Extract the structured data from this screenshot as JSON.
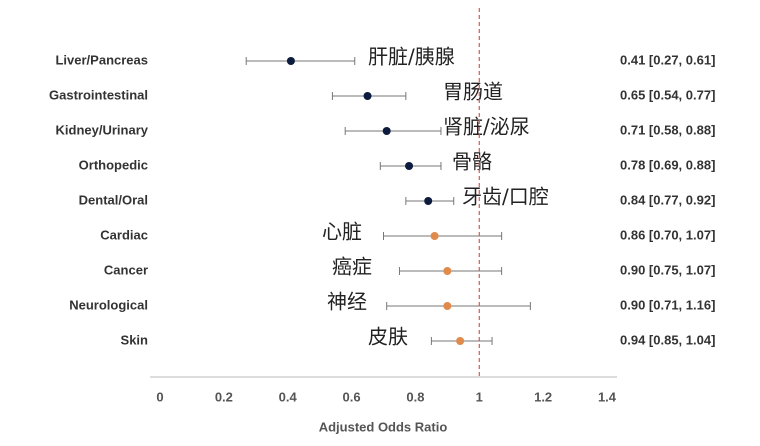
{
  "chart_data": {
    "type": "forest",
    "x_label": "Adjusted Odds Ratio",
    "categories": [
      "Liver/Pancreas",
      "Gastrointestinal",
      "Kidney/Urinary",
      "Orthopedic",
      "Dental/Oral",
      "Cardiac",
      "Cancer",
      "Neurological",
      "Skin"
    ],
    "annotations": [
      "肝脏/胰腺",
      "胃肠道",
      "肾脏/泌尿",
      "骨骼",
      "牙齿/口腔",
      "心脏",
      "癌症",
      "神经",
      "皮肤"
    ],
    "values": [
      0.41,
      0.65,
      0.71,
      0.78,
      0.84,
      0.86,
      0.9,
      0.9,
      0.94
    ],
    "lower": [
      0.27,
      0.54,
      0.58,
      0.69,
      0.77,
      0.7,
      0.75,
      0.71,
      0.85
    ],
    "upper": [
      0.61,
      0.77,
      0.88,
      0.88,
      0.92,
      1.07,
      1.07,
      1.16,
      1.04
    ],
    "value_labels": [
      "0.41 [0.27, 0.61]",
      "0.65 [0.54, 0.77]",
      "0.71 [0.58, 0.88]",
      "0.78 [0.69, 0.88]",
      "0.84 [0.77, 0.92]",
      "0.86 [0.70, 1.07]",
      "0.90 [0.75, 1.07]",
      "0.90 [0.71, 1.16]",
      "0.94 [0.85, 1.04]"
    ],
    "colors": [
      "#0d1b3e",
      "#0d1b3e",
      "#0d1b3e",
      "#0d1b3e",
      "#0d1b3e",
      "#e08a4c",
      "#e08a4c",
      "#e08a4c",
      "#e08a4c"
    ],
    "reference_line": 1,
    "reference_color": "#e0554a",
    "xlim": [
      0,
      1.4
    ],
    "xticks": [
      0,
      0.2,
      0.4,
      0.6,
      0.8,
      1,
      1.2,
      1.4
    ]
  }
}
